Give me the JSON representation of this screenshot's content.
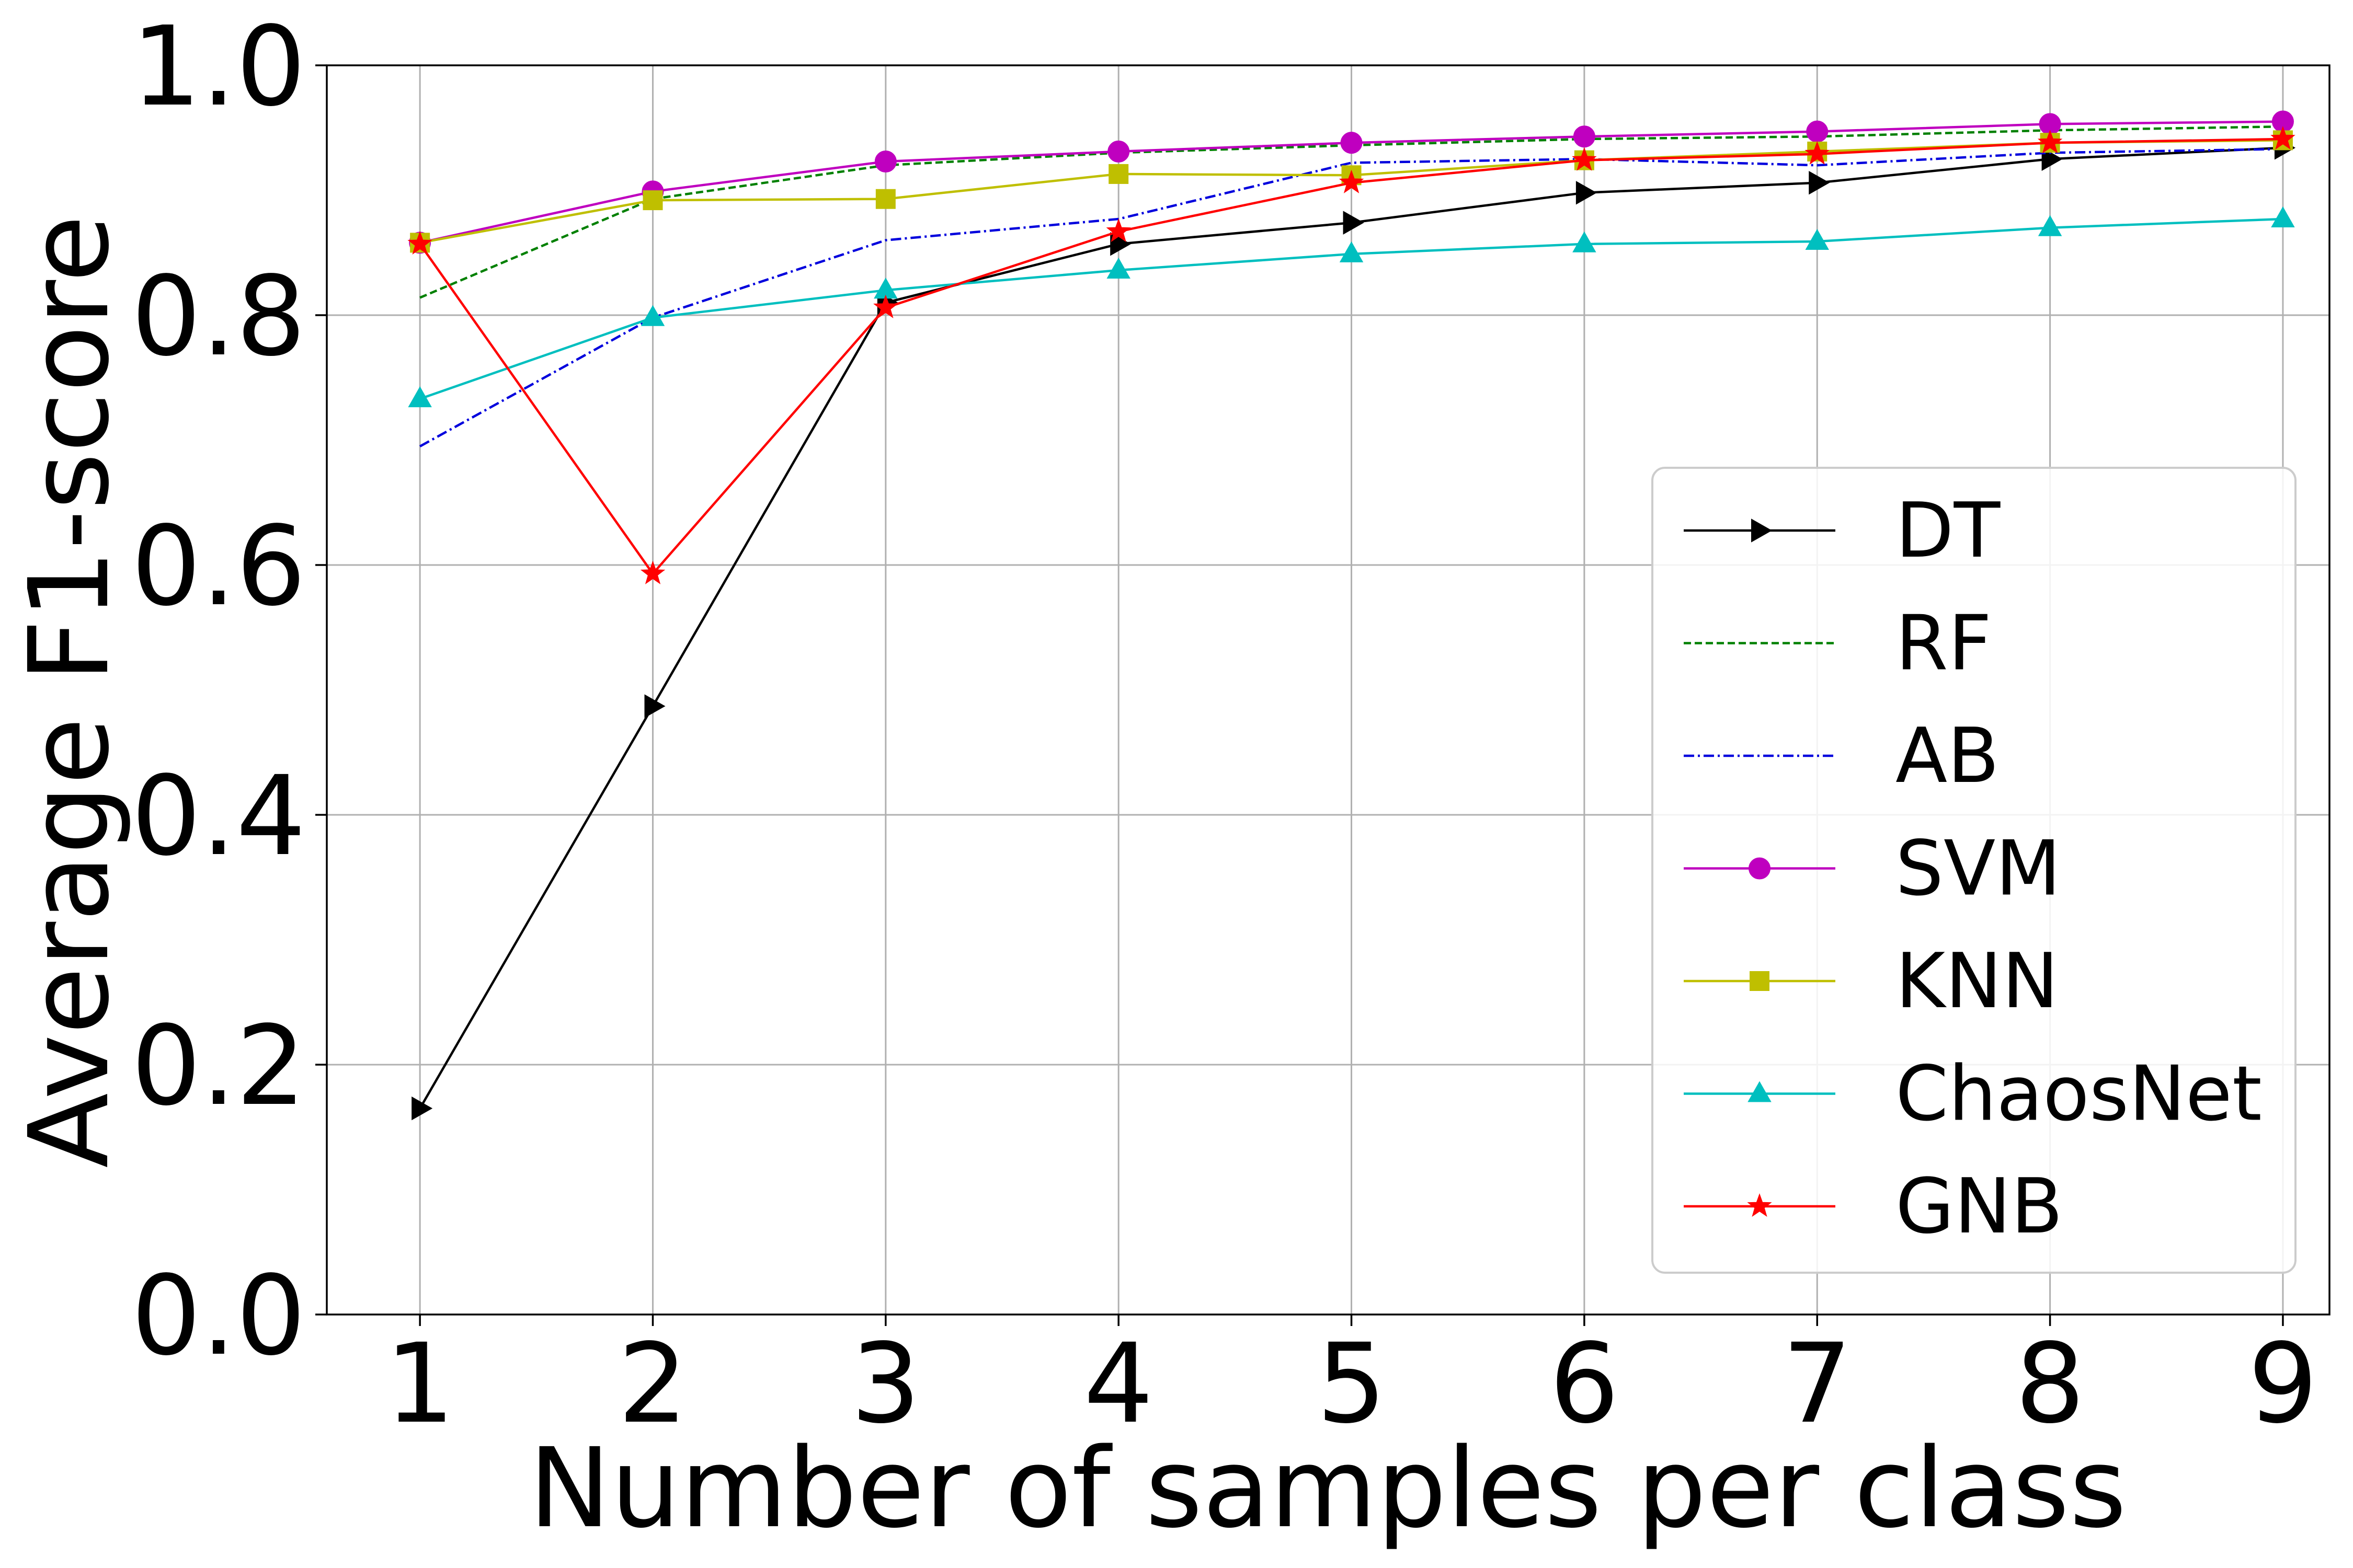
{
  "chart_data": {
    "type": "line",
    "title": "",
    "xlabel": "Number of samples per class",
    "ylabel": "Average F1-score",
    "x": [
      1,
      2,
      3,
      4,
      5,
      6,
      7,
      8,
      9
    ],
    "xticks": [
      "1",
      "2",
      "3",
      "4",
      "5",
      "6",
      "7",
      "8",
      "9"
    ],
    "yticks": [
      "0.0",
      "0.2",
      "0.4",
      "0.6",
      "0.8",
      "1.0"
    ],
    "xlim": [
      0.6,
      9.2
    ],
    "ylim": [
      0.0,
      1.0
    ],
    "grid": true,
    "legend_position": "center-right",
    "series": [
      {
        "name": "DT",
        "color": "#000000",
        "dash": "solid",
        "marker": "triangle-right",
        "values": [
          0.165,
          0.487,
          0.81,
          0.857,
          0.874,
          0.898,
          0.906,
          0.925,
          0.934
        ]
      },
      {
        "name": "RF",
        "color": "#008000",
        "dash": "dashed",
        "marker": "none",
        "values": [
          0.814,
          0.893,
          0.92,
          0.93,
          0.936,
          0.941,
          0.943,
          0.948,
          0.951
        ]
      },
      {
        "name": "AB",
        "color": "#0000dd",
        "dash": "dashdot",
        "marker": "none",
        "values": [
          0.695,
          0.798,
          0.86,
          0.877,
          0.922,
          0.925,
          0.92,
          0.93,
          0.933
        ]
      },
      {
        "name": "SVM",
        "color": "#bf00bf",
        "dash": "solid",
        "marker": "circle",
        "values": [
          0.858,
          0.899,
          0.923,
          0.931,
          0.938,
          0.943,
          0.947,
          0.953,
          0.955
        ]
      },
      {
        "name": "KNN",
        "color": "#bfbf00",
        "dash": "solid",
        "marker": "square",
        "values": [
          0.858,
          0.892,
          0.893,
          0.913,
          0.912,
          0.924,
          0.931,
          0.938,
          0.94
        ]
      },
      {
        "name": "ChaosNet",
        "color": "#00bfbf",
        "dash": "solid",
        "marker": "triangle-up",
        "values": [
          0.733,
          0.798,
          0.82,
          0.836,
          0.849,
          0.857,
          0.859,
          0.87,
          0.877
        ]
      },
      {
        "name": "GNB",
        "color": "#ff0000",
        "dash": "solid",
        "marker": "star",
        "values": [
          0.857,
          0.593,
          0.806,
          0.867,
          0.906,
          0.924,
          0.929,
          0.938,
          0.941
        ]
      }
    ]
  }
}
